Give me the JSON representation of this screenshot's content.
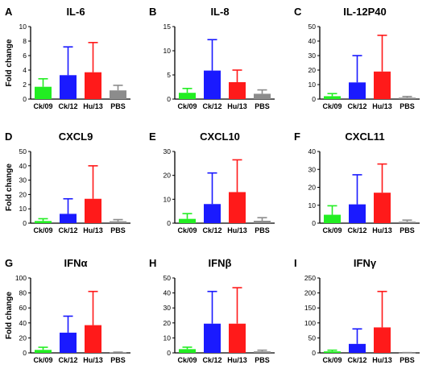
{
  "colors": {
    "Ck/09": "#22ee22",
    "Ck/12": "#1a1aff",
    "Hu/13": "#ff1a1a",
    "PBS": "#8c8c8c"
  },
  "chart_data": [
    {
      "type": "bar",
      "panel": "A",
      "title": "IL-6",
      "ylabel": "Fold change",
      "ylim": [
        0,
        10
      ],
      "ticks": [
        0,
        2,
        4,
        6,
        8,
        10
      ],
      "categories": [
        "Ck/09",
        "Ck/12",
        "Hu/13",
        "PBS"
      ],
      "values": [
        1.7,
        3.3,
        3.7,
        1.2
      ],
      "errors": [
        1.1,
        3.9,
        4.1,
        0.7
      ]
    },
    {
      "type": "bar",
      "panel": "B",
      "title": "IL-8",
      "ylabel": "",
      "ylim": [
        0,
        15
      ],
      "ticks": [
        0,
        5,
        10,
        15
      ],
      "categories": [
        "Ck/09",
        "Ck/12",
        "Hu/13",
        "PBS"
      ],
      "values": [
        1.3,
        5.9,
        3.5,
        1.1
      ],
      "errors": [
        0.9,
        6.4,
        2.5,
        0.8
      ]
    },
    {
      "type": "bar",
      "panel": "C",
      "title": "IL-12P40",
      "ylabel": "",
      "ylim": [
        0,
        50
      ],
      "ticks": [
        0,
        10,
        20,
        30,
        40,
        50
      ],
      "categories": [
        "Ck/09",
        "Ck/12",
        "Hu/13",
        "PBS"
      ],
      "values": [
        2.0,
        11.5,
        19.0,
        1.0
      ],
      "errors": [
        1.8,
        18.5,
        25.0,
        0.8
      ]
    },
    {
      "type": "bar",
      "panel": "D",
      "title": "CXCL9",
      "ylabel": "Fold change",
      "ylim": [
        0,
        50
      ],
      "ticks": [
        0,
        10,
        20,
        30,
        40,
        50
      ],
      "categories": [
        "Ck/09",
        "Ck/12",
        "Hu/13",
        "PBS"
      ],
      "values": [
        1.5,
        6.5,
        17.0,
        1.3
      ],
      "errors": [
        1.6,
        10.5,
        23.0,
        1.2
      ]
    },
    {
      "type": "bar",
      "panel": "E",
      "title": "CXCL10",
      "ylabel": "",
      "ylim": [
        0,
        30
      ],
      "ticks": [
        0,
        10,
        20,
        30
      ],
      "categories": [
        "Ck/09",
        "Ck/12",
        "Hu/13",
        "PBS"
      ],
      "values": [
        1.8,
        8.0,
        13.0,
        1.0
      ],
      "errors": [
        2.2,
        13.0,
        13.5,
        1.3
      ]
    },
    {
      "type": "bar",
      "panel": "F",
      "title": "CXCL11",
      "ylabel": "",
      "ylim": [
        0,
        40
      ],
      "ticks": [
        0,
        10,
        20,
        30,
        40
      ],
      "categories": [
        "Ck/09",
        "Ck/12",
        "Hu/13",
        "PBS"
      ],
      "values": [
        4.7,
        10.5,
        17.0,
        0.8
      ],
      "errors": [
        5.0,
        16.5,
        16.0,
        0.9
      ]
    },
    {
      "type": "bar",
      "panel": "G",
      "title": "IFNα",
      "ylabel": "Fold change",
      "ylim": [
        0,
        100
      ],
      "ticks": [
        0,
        20,
        40,
        60,
        80,
        100
      ],
      "categories": [
        "Ck/09",
        "Ck/12",
        "Hu/13",
        "PBS"
      ],
      "values": [
        4.0,
        27.0,
        37.0,
        0.5
      ],
      "errors": [
        3.5,
        22.0,
        45.0,
        0.5
      ]
    },
    {
      "type": "bar",
      "panel": "H",
      "title": "IFNβ",
      "ylabel": "",
      "ylim": [
        0,
        50
      ],
      "ticks": [
        0,
        10,
        20,
        30,
        40,
        50
      ],
      "categories": [
        "Ck/09",
        "Ck/12",
        "Hu/13",
        "PBS"
      ],
      "values": [
        2.5,
        19.5,
        19.5,
        1.0
      ],
      "errors": [
        1.3,
        21.5,
        24.0,
        0.8
      ]
    },
    {
      "type": "bar",
      "panel": "I",
      "title": "IFNγ",
      "ylabel": "",
      "ylim": [
        0,
        250
      ],
      "ticks": [
        0,
        50,
        100,
        150,
        200,
        250
      ],
      "categories": [
        "Ck/09",
        "Ck/12",
        "Hu/13",
        "PBS"
      ],
      "values": [
        5.0,
        30.0,
        85.0,
        0.5
      ],
      "errors": [
        4.0,
        50.0,
        120.0,
        0.5
      ]
    }
  ]
}
